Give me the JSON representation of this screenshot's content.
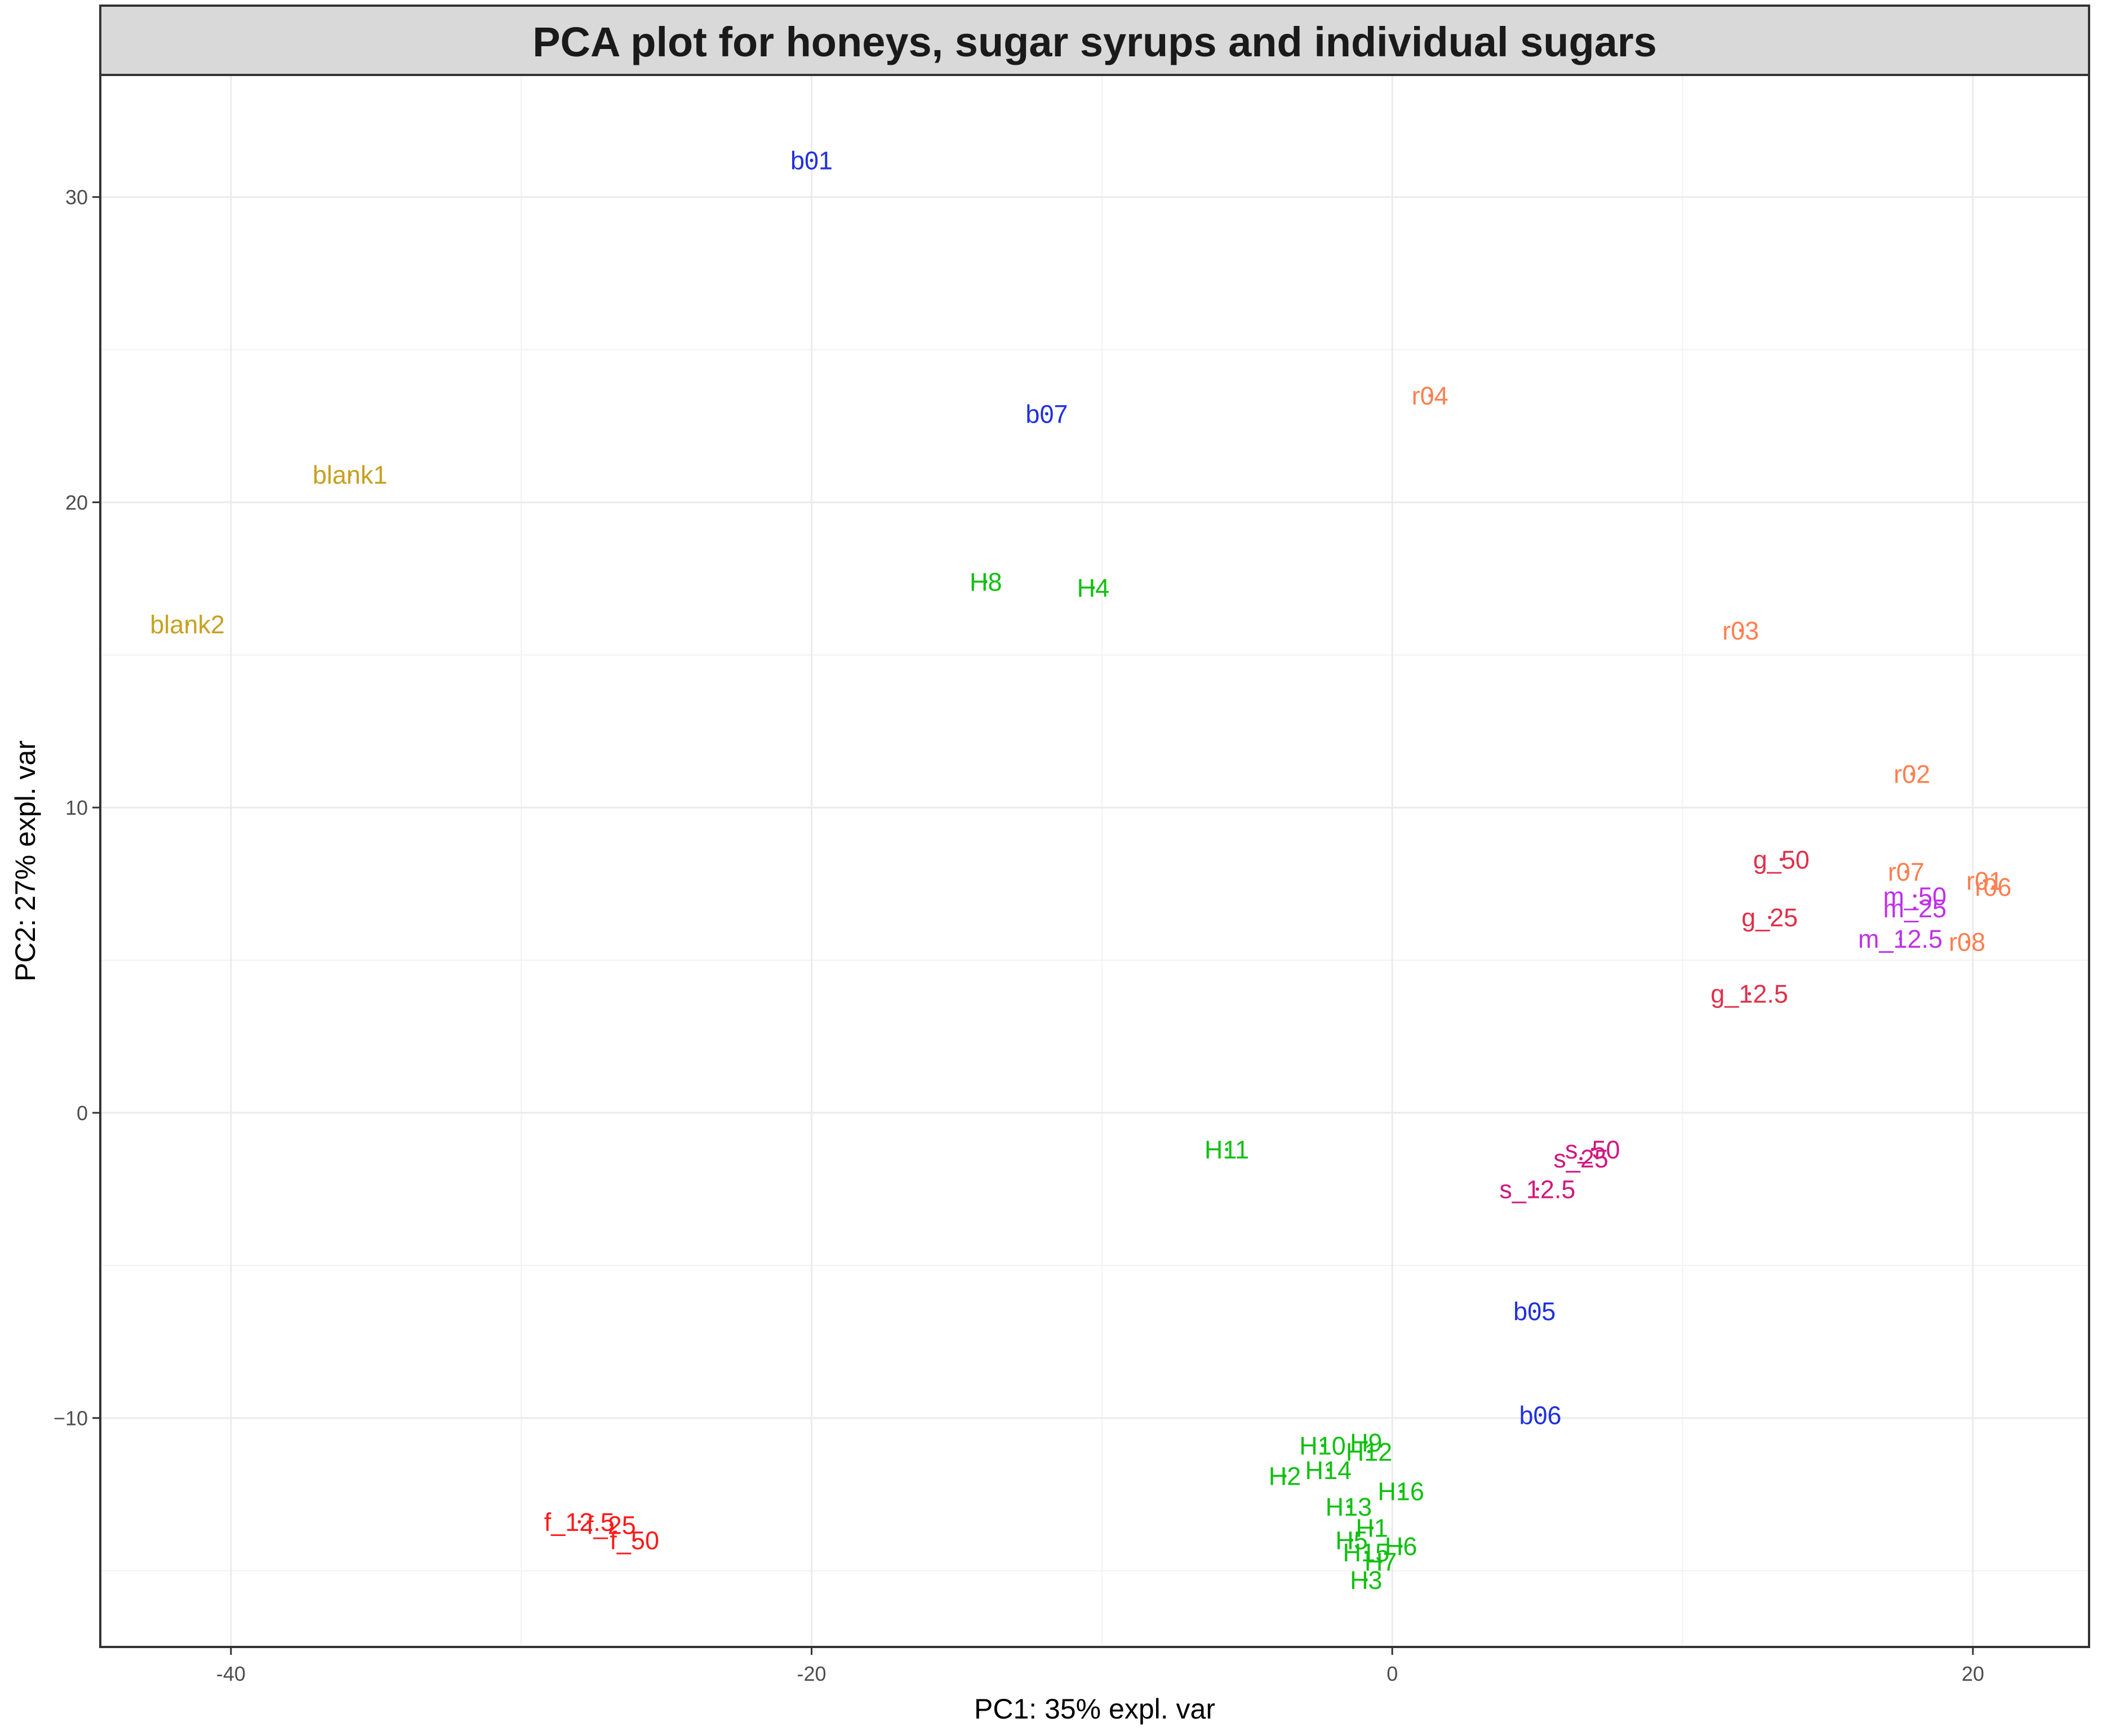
{
  "chart_data": {
    "type": "scatter",
    "title": "PCA plot for honeys, sugar syrups and individual sugars",
    "xlabel": "PC1: 35% expl. var",
    "ylabel": "PC2: 27% expl. var",
    "xlim": [
      -44.5,
      24
    ],
    "ylim": [
      -17.5,
      34
    ],
    "x_ticks": [
      -40,
      -20,
      0,
      20
    ],
    "x_tick_labels": [
      "-40",
      "-20",
      "0",
      "20"
    ],
    "y_ticks": [
      -10,
      0,
      10,
      20,
      30
    ],
    "y_tick_labels": [
      "−10",
      "0",
      "10",
      "20",
      "30"
    ],
    "grid": true,
    "legend": "none",
    "colors": {
      "b": "#2030e0",
      "blank": "#c8a020",
      "H": "#10c010",
      "r": "#ff7f50",
      "g": "#e0304a",
      "m": "#c030e8",
      "s": "#d01880",
      "f": "#ff1a1a"
    },
    "points": [
      {
        "label": "b01",
        "x": -20.0,
        "y": 31.2,
        "group": "b"
      },
      {
        "label": "b07",
        "x": -11.9,
        "y": 22.9,
        "group": "b"
      },
      {
        "label": "b05",
        "x": 4.9,
        "y": -6.5,
        "group": "b"
      },
      {
        "label": "b06",
        "x": 5.1,
        "y": -9.9,
        "group": "b"
      },
      {
        "label": "blank1",
        "x": -35.9,
        "y": 20.9,
        "group": "blank"
      },
      {
        "label": "blank2",
        "x": -41.5,
        "y": 16.0,
        "group": "blank"
      },
      {
        "label": "H8",
        "x": -14.0,
        "y": 17.4,
        "group": "H"
      },
      {
        "label": "H4",
        "x": -10.3,
        "y": 17.2,
        "group": "H"
      },
      {
        "label": "H11",
        "x": -5.7,
        "y": -1.2,
        "group": "H"
      },
      {
        "label": "H10",
        "x": -2.4,
        "y": -10.9,
        "group": "H"
      },
      {
        "label": "H9",
        "x": -0.9,
        "y": -10.8,
        "group": "H"
      },
      {
        "label": "H12",
        "x": -0.8,
        "y": -11.1,
        "group": "H"
      },
      {
        "label": "H14",
        "x": -2.2,
        "y": -11.7,
        "group": "H"
      },
      {
        "label": "H2",
        "x": -3.7,
        "y": -11.9,
        "group": "H"
      },
      {
        "label": "H16",
        "x": 0.3,
        "y": -12.4,
        "group": "H"
      },
      {
        "label": "H13",
        "x": -1.5,
        "y": -12.9,
        "group": "H"
      },
      {
        "label": "H1",
        "x": -0.7,
        "y": -13.6,
        "group": "H"
      },
      {
        "label": "H5",
        "x": -1.4,
        "y": -14.0,
        "group": "H"
      },
      {
        "label": "H6",
        "x": 0.3,
        "y": -14.2,
        "group": "H"
      },
      {
        "label": "H15",
        "x": -0.9,
        "y": -14.4,
        "group": "H"
      },
      {
        "label": "H7",
        "x": -0.4,
        "y": -14.7,
        "group": "H"
      },
      {
        "label": "H3",
        "x": -0.9,
        "y": -15.3,
        "group": "H"
      },
      {
        "label": "r04",
        "x": 1.3,
        "y": 23.5,
        "group": "r"
      },
      {
        "label": "r03",
        "x": 12.0,
        "y": 15.8,
        "group": "r"
      },
      {
        "label": "r02",
        "x": 17.9,
        "y": 11.1,
        "group": "r"
      },
      {
        "label": "r07",
        "x": 17.7,
        "y": 7.9,
        "group": "r"
      },
      {
        "label": "r01",
        "x": 20.4,
        "y": 7.6,
        "group": "r"
      },
      {
        "label": "r06",
        "x": 20.7,
        "y": 7.4,
        "group": "r"
      },
      {
        "label": "r08",
        "x": 19.8,
        "y": 5.6,
        "group": "r"
      },
      {
        "label": "g_50",
        "x": 13.4,
        "y": 8.3,
        "group": "g"
      },
      {
        "label": "g_25",
        "x": 13.0,
        "y": 6.4,
        "group": "g"
      },
      {
        "label": "g_12.5",
        "x": 12.3,
        "y": 3.9,
        "group": "g"
      },
      {
        "label": "m_50",
        "x": 18.0,
        "y": 7.1,
        "group": "m"
      },
      {
        "label": "m_25",
        "x": 18.0,
        "y": 6.7,
        "group": "m"
      },
      {
        "label": "m_12.5",
        "x": 17.5,
        "y": 5.7,
        "group": "m"
      },
      {
        "label": "s_50",
        "x": 6.9,
        "y": -1.2,
        "group": "s"
      },
      {
        "label": "s_25",
        "x": 6.5,
        "y": -1.5,
        "group": "s"
      },
      {
        "label": "s_12.5",
        "x": 5.0,
        "y": -2.5,
        "group": "s"
      },
      {
        "label": "f_12.5",
        "x": -28.0,
        "y": -13.4,
        "group": "f"
      },
      {
        "label": "f_25",
        "x": -26.9,
        "y": -13.5,
        "group": "f"
      },
      {
        "label": "f_50",
        "x": -26.1,
        "y": -14.0,
        "group": "f"
      }
    ]
  }
}
